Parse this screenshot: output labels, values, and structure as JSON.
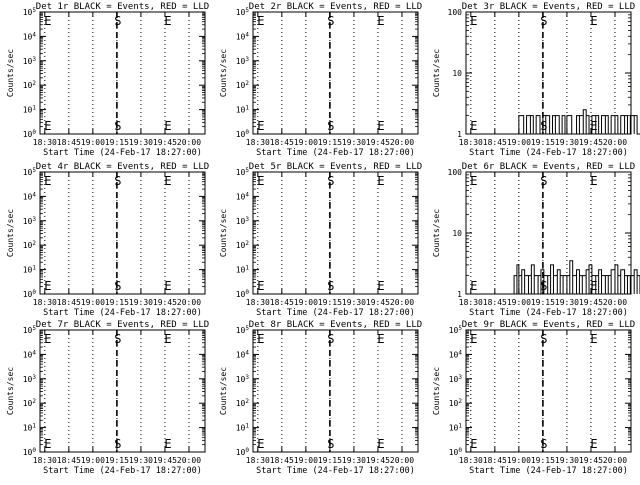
{
  "chart_data": [
    {
      "type": "line",
      "title": "Det 1r BLACK = Events, RED = LLD",
      "xlabel": "Start Time (24-Feb-17 18:27:00)",
      "ylabel": "Counts/sec",
      "yscale": "log",
      "ylim": [
        1,
        100000.0
      ],
      "yticks": [
        "10^0",
        "10^1",
        "10^2",
        "10^3",
        "10^4",
        "10^5"
      ],
      "xticks": [
        "18:30",
        "18:45",
        "19:00",
        "19:15",
        "19:30",
        "19:45",
        "20:00"
      ],
      "markers": [
        {
          "label": "E",
          "at": "18:30"
        },
        {
          "label": "S",
          "at": "19:15"
        },
        {
          "label": "E",
          "at": "19:45"
        }
      ],
      "series": []
    },
    {
      "type": "line",
      "title": "Det 2r BLACK = Events, RED = LLD",
      "xlabel": "Start Time (24-Feb-17 18:27:00)",
      "ylabel": "Counts/sec",
      "yscale": "log",
      "ylim": [
        1,
        100000.0
      ],
      "yticks": [
        "10^0",
        "10^1",
        "10^2",
        "10^3",
        "10^4",
        "10^5"
      ],
      "xticks": [
        "18:30",
        "18:45",
        "19:00",
        "19:15",
        "19:30",
        "19:45",
        "20:00"
      ],
      "markers": [
        {
          "label": "E",
          "at": "18:30"
        },
        {
          "label": "S",
          "at": "19:15"
        },
        {
          "label": "E",
          "at": "19:45"
        }
      ],
      "series": []
    },
    {
      "type": "line",
      "title": "Det 3r BLACK = Events, RED = LLD",
      "xlabel": "Start Time (24-Feb-17 18:27:00)",
      "ylabel": "Counts/sec",
      "yscale": "log",
      "ylim": [
        1,
        100
      ],
      "yticks": [
        "1",
        "10",
        "100"
      ],
      "xticks": [
        "18:30",
        "18:45",
        "19:00",
        "19:15",
        "19:30",
        "19:45",
        "20:00"
      ],
      "markers": [
        {
          "label": "E",
          "at": "18:30"
        },
        {
          "label": "S",
          "at": "19:15"
        },
        {
          "label": "E",
          "at": "19:45"
        }
      ],
      "series": [
        {
          "name": "",
          "color": "#000000",
          "x": [
            19.0,
            19.05,
            19.08,
            19.12,
            19.15,
            19.18,
            19.22,
            19.25,
            19.28,
            19.32,
            19.35,
            19.38,
            19.42,
            19.45,
            19.48,
            19.5,
            19.55,
            19.6,
            19.63,
            19.67,
            19.7,
            19.73,
            19.76,
            19.8,
            19.83,
            19.86,
            19.9,
            19.93,
            19.96,
            20.0,
            20.03,
            20.06,
            20.1,
            20.13,
            20.16,
            20.2,
            20.23,
            20.26,
            20.3,
            20.33,
            20.36,
            20.4,
            20.43,
            20.46,
            20.5,
            20.53,
            20.56,
            20.6,
            20.63,
            20.66,
            20.7,
            20.73,
            20.76
          ],
          "y": [
            2,
            1,
            2,
            2,
            1,
            2,
            1,
            2,
            2,
            1,
            2,
            2,
            1,
            2,
            1,
            2,
            1,
            2,
            2,
            2.5,
            2,
            1,
            2,
            2,
            1,
            2,
            2,
            1,
            2,
            2,
            1,
            2,
            2,
            1,
            2,
            2,
            1,
            1,
            2,
            2,
            1,
            2,
            1,
            2,
            2,
            1,
            2,
            1,
            2,
            2,
            1,
            2,
            2
          ]
        }
      ]
    },
    {
      "type": "line",
      "title": "Det 4r BLACK = Events, RED = LLD",
      "xlabel": "Start Time (24-Feb-17 18:27:00)",
      "ylabel": "Counts/sec",
      "yscale": "log",
      "ylim": [
        1,
        100000.0
      ],
      "yticks": [
        "10^0",
        "10^1",
        "10^2",
        "10^3",
        "10^4",
        "10^5"
      ],
      "xticks": [
        "18:30",
        "18:45",
        "19:00",
        "19:15",
        "19:30",
        "19:45",
        "20:00"
      ],
      "markers": [
        {
          "label": "E",
          "at": "18:30"
        },
        {
          "label": "S",
          "at": "19:15"
        },
        {
          "label": "E",
          "at": "19:45"
        }
      ],
      "series": []
    },
    {
      "type": "line",
      "title": "Det 5r BLACK = Events, RED = LLD",
      "xlabel": "Start Time (24-Feb-17 18:27:00)",
      "ylabel": "Counts/sec",
      "yscale": "log",
      "ylim": [
        1,
        100000.0
      ],
      "yticks": [
        "10^0",
        "10^1",
        "10^2",
        "10^3",
        "10^4",
        "10^5"
      ],
      "xticks": [
        "18:30",
        "18:45",
        "19:00",
        "19:15",
        "19:30",
        "19:45",
        "20:00"
      ],
      "markers": [
        {
          "label": "E",
          "at": "18:30"
        },
        {
          "label": "S",
          "at": "19:15"
        },
        {
          "label": "E",
          "at": "19:45"
        }
      ],
      "series": []
    },
    {
      "type": "line",
      "title": "Det 6r BLACK = Events, RED = LLD",
      "xlabel": "Start Time (24-Feb-17 18:27:00)",
      "ylabel": "Counts/sec",
      "yscale": "log",
      "ylim": [
        1,
        100
      ],
      "yticks": [
        "1",
        "10",
        "100"
      ],
      "xticks": [
        "18:30",
        "18:45",
        "19:00",
        "19:15",
        "19:30",
        "19:45",
        "20:00"
      ],
      "markers": [
        {
          "label": "E",
          "at": "18:30"
        },
        {
          "label": "S",
          "at": "19:15"
        },
        {
          "label": "E",
          "at": "19:45"
        }
      ],
      "series": [
        {
          "name": "",
          "color": "#000000",
          "x": [
            18.95,
            18.98,
            19.0,
            19.03,
            19.06,
            19.1,
            19.13,
            19.16,
            19.2,
            19.23,
            19.26,
            19.3,
            19.33,
            19.36,
            19.4,
            19.43,
            19.46,
            19.5,
            19.53,
            19.56,
            19.6,
            19.63,
            19.66,
            19.7,
            19.73,
            19.76,
            19.8,
            19.83,
            19.86,
            19.9,
            19.93,
            19.96,
            20.0,
            20.03,
            20.06,
            20.1,
            20.13,
            20.16,
            20.2,
            20.23,
            20.26,
            20.3,
            20.33,
            20.36,
            20.4,
            20.43,
            20.46,
            20.5,
            20.53,
            20.56,
            20.6,
            20.63,
            20.66,
            20.7,
            20.73,
            20.76
          ],
          "y": [
            2,
            3,
            2,
            2.5,
            2,
            2,
            3,
            2,
            2,
            2.5,
            2,
            2,
            3,
            2,
            2.5,
            2,
            2,
            2,
            3.5,
            2,
            2.5,
            2,
            2,
            2.5,
            3,
            2,
            2,
            2.5,
            2,
            2,
            2,
            2.5,
            3,
            2,
            2.5,
            2,
            2,
            2,
            2.5,
            2,
            2,
            2.5,
            2,
            3,
            2,
            2.5,
            2,
            2,
            2,
            2.5,
            3,
            2,
            2.5,
            3,
            2,
            2
          ]
        }
      ]
    },
    {
      "type": "line",
      "title": "Det 7r BLACK = Events, RED = LLD",
      "xlabel": "Start Time (24-Feb-17 18:27:00)",
      "ylabel": "Counts/sec",
      "yscale": "log",
      "ylim": [
        1,
        100000.0
      ],
      "yticks": [
        "10^0",
        "10^1",
        "10^2",
        "10^3",
        "10^4",
        "10^5"
      ],
      "xticks": [
        "18:30",
        "18:45",
        "19:00",
        "19:15",
        "19:30",
        "19:45",
        "20:00"
      ],
      "markers": [
        {
          "label": "E",
          "at": "18:30"
        },
        {
          "label": "S",
          "at": "19:15"
        },
        {
          "label": "E",
          "at": "19:45"
        }
      ],
      "series": []
    },
    {
      "type": "line",
      "title": "Det 8r BLACK = Events, RED = LLD",
      "xlabel": "Start Time (24-Feb-17 18:27:00)",
      "ylabel": "Counts/sec",
      "yscale": "log",
      "ylim": [
        1,
        100000.0
      ],
      "yticks": [
        "10^0",
        "10^1",
        "10^2",
        "10^3",
        "10^4",
        "10^5"
      ],
      "xticks": [
        "18:30",
        "18:45",
        "19:00",
        "19:15",
        "19:30",
        "19:45",
        "20:00"
      ],
      "markers": [
        {
          "label": "E",
          "at": "18:30"
        },
        {
          "label": "S",
          "at": "19:15"
        },
        {
          "label": "E",
          "at": "19:45"
        }
      ],
      "series": []
    },
    {
      "type": "line",
      "title": "Det 9r BLACK = Events, RED = LLD",
      "xlabel": "Start Time (24-Feb-17 18:27:00)",
      "ylabel": "Counts/sec",
      "yscale": "log",
      "ylim": [
        1,
        100000.0
      ],
      "yticks": [
        "10^0",
        "10^1",
        "10^2",
        "10^3",
        "10^4",
        "10^5"
      ],
      "xticks": [
        "18:30",
        "18:45",
        "19:00",
        "19:15",
        "19:30",
        "19:45",
        "20:00"
      ],
      "markers": [
        {
          "label": "E",
          "at": "18:30"
        },
        {
          "label": "S",
          "at": "19:15"
        },
        {
          "label": "E",
          "at": "19:45"
        }
      ],
      "series": []
    }
  ]
}
